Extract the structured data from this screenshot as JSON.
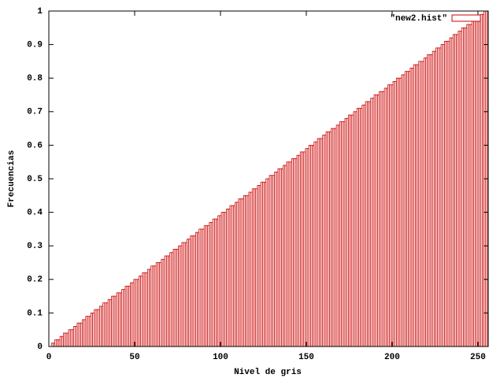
{
  "chart_data": {
    "type": "bar",
    "xlabel": "Nivel de gris",
    "ylabel": "Frecuencias",
    "x": [
      0,
      1,
      2,
      3,
      4,
      5,
      6,
      7,
      8,
      9,
      10,
      11,
      12,
      13,
      14,
      15,
      16,
      17,
      18,
      19,
      20,
      21,
      22,
      23,
      24,
      25,
      26,
      27,
      28,
      29,
      30,
      31,
      32,
      33,
      34,
      35,
      36,
      37,
      38,
      39,
      40,
      41,
      42,
      43,
      44,
      45,
      46,
      47,
      48,
      49,
      50,
      51,
      52,
      53,
      54,
      55,
      56,
      57,
      58,
      59,
      60,
      61,
      62,
      63,
      64,
      65,
      66,
      67,
      68,
      69,
      70,
      71,
      72,
      73,
      74,
      75,
      76,
      77,
      78,
      79,
      80,
      81,
      82,
      83,
      84,
      85,
      86,
      87,
      88,
      89,
      90,
      91,
      92,
      93,
      94,
      95,
      96,
      97,
      98,
      99,
      100,
      101,
      102,
      103,
      104,
      105,
      106,
      107,
      108,
      109,
      110,
      111,
      112,
      113,
      114,
      115,
      116,
      117,
      118,
      119,
      120,
      121,
      122,
      123,
      124,
      125,
      126,
      127,
      128,
      129,
      130,
      131,
      132,
      133,
      134,
      135,
      136,
      137,
      138,
      139,
      140,
      141,
      142,
      143,
      144,
      145,
      146,
      147,
      148,
      149,
      150,
      151,
      152,
      153,
      154,
      155,
      156,
      157,
      158,
      159,
      160,
      161,
      162,
      163,
      164,
      165,
      166,
      167,
      168,
      169,
      170,
      171,
      172,
      173,
      174,
      175,
      176,
      177,
      178,
      179,
      180,
      181,
      182,
      183,
      184,
      185,
      186,
      187,
      188,
      189,
      190,
      191,
      192,
      193,
      194,
      195,
      196,
      197,
      198,
      199,
      200,
      201,
      202,
      203,
      204,
      205,
      206,
      207,
      208,
      209,
      210,
      211,
      212,
      213,
      214,
      215,
      216,
      217,
      218,
      219,
      220,
      221,
      222,
      223,
      224,
      225,
      226,
      227,
      228,
      229,
      230,
      231,
      232,
      233,
      234,
      235,
      236,
      237,
      238,
      239,
      240,
      241,
      242,
      243,
      244,
      245,
      246,
      247,
      248,
      249,
      250,
      251,
      252,
      253,
      254,
      255
    ],
    "series": [
      {
        "name": "\"new2.hist\"",
        "color": "#cc0000",
        "values": [
          0,
          0,
          0.01,
          0.01,
          0.02,
          0.02,
          0.02,
          0.03,
          0.03,
          0.04,
          0.04,
          0.04,
          0.05,
          0.05,
          0.05,
          0.06,
          0.06,
          0.07,
          0.07,
          0.07,
          0.08,
          0.08,
          0.09,
          0.09,
          0.09,
          0.1,
          0.1,
          0.11,
          0.11,
          0.11,
          0.12,
          0.12,
          0.13,
          0.13,
          0.13,
          0.14,
          0.14,
          0.15,
          0.15,
          0.15,
          0.16,
          0.16,
          0.16,
          0.17,
          0.17,
          0.18,
          0.18,
          0.18,
          0.19,
          0.19,
          0.2,
          0.2,
          0.2,
          0.21,
          0.21,
          0.22,
          0.22,
          0.22,
          0.23,
          0.23,
          0.24,
          0.24,
          0.24,
          0.25,
          0.25,
          0.25,
          0.26,
          0.26,
          0.27,
          0.27,
          0.27,
          0.28,
          0.28,
          0.29,
          0.29,
          0.29,
          0.3,
          0.3,
          0.31,
          0.31,
          0.31,
          0.32,
          0.32,
          0.33,
          0.33,
          0.33,
          0.34,
          0.34,
          0.35,
          0.35,
          0.35,
          0.36,
          0.36,
          0.36,
          0.37,
          0.37,
          0.38,
          0.38,
          0.38,
          0.39,
          0.39,
          0.4,
          0.4,
          0.4,
          0.41,
          0.41,
          0.42,
          0.42,
          0.42,
          0.43,
          0.43,
          0.44,
          0.44,
          0.44,
          0.45,
          0.45,
          0.45,
          0.46,
          0.46,
          0.47,
          0.47,
          0.47,
          0.48,
          0.48,
          0.49,
          0.49,
          0.49,
          0.5,
          0.5,
          0.51,
          0.51,
          0.51,
          0.52,
          0.52,
          0.53,
          0.53,
          0.53,
          0.54,
          0.54,
          0.55,
          0.55,
          0.55,
          0.56,
          0.56,
          0.56,
          0.57,
          0.57,
          0.58,
          0.58,
          0.58,
          0.59,
          0.59,
          0.6,
          0.6,
          0.6,
          0.61,
          0.61,
          0.62,
          0.62,
          0.62,
          0.63,
          0.63,
          0.64,
          0.64,
          0.64,
          0.65,
          0.65,
          0.65,
          0.66,
          0.66,
          0.67,
          0.67,
          0.67,
          0.68,
          0.68,
          0.69,
          0.69,
          0.69,
          0.7,
          0.7,
          0.71,
          0.71,
          0.71,
          0.72,
          0.72,
          0.73,
          0.73,
          0.73,
          0.74,
          0.74,
          0.75,
          0.75,
          0.75,
          0.76,
          0.76,
          0.76,
          0.77,
          0.77,
          0.78,
          0.78,
          0.78,
          0.79,
          0.79,
          0.8,
          0.8,
          0.8,
          0.81,
          0.81,
          0.82,
          0.82,
          0.82,
          0.83,
          0.83,
          0.84,
          0.84,
          0.84,
          0.85,
          0.85,
          0.85,
          0.86,
          0.86,
          0.87,
          0.87,
          0.87,
          0.88,
          0.88,
          0.89,
          0.89,
          0.89,
          0.9,
          0.9,
          0.91,
          0.91,
          0.91,
          0.92,
          0.92,
          0.93,
          0.93,
          0.93,
          0.94,
          0.94,
          0.95,
          0.95,
          0.95,
          0.96,
          0.96,
          0.96,
          0.97,
          0.97,
          0.98,
          0.98,
          0.98,
          0.99,
          0.99,
          1,
          1
        ]
      }
    ],
    "xlim": [
      0,
      256
    ],
    "xticks": [
      0,
      50,
      100,
      150,
      200,
      250
    ],
    "ylim": [
      0,
      1
    ],
    "yticks": [
      0,
      0.1,
      0.2,
      0.3,
      0.4,
      0.5,
      0.6,
      0.7,
      0.8,
      0.9,
      1
    ],
    "legend": "top-right"
  }
}
